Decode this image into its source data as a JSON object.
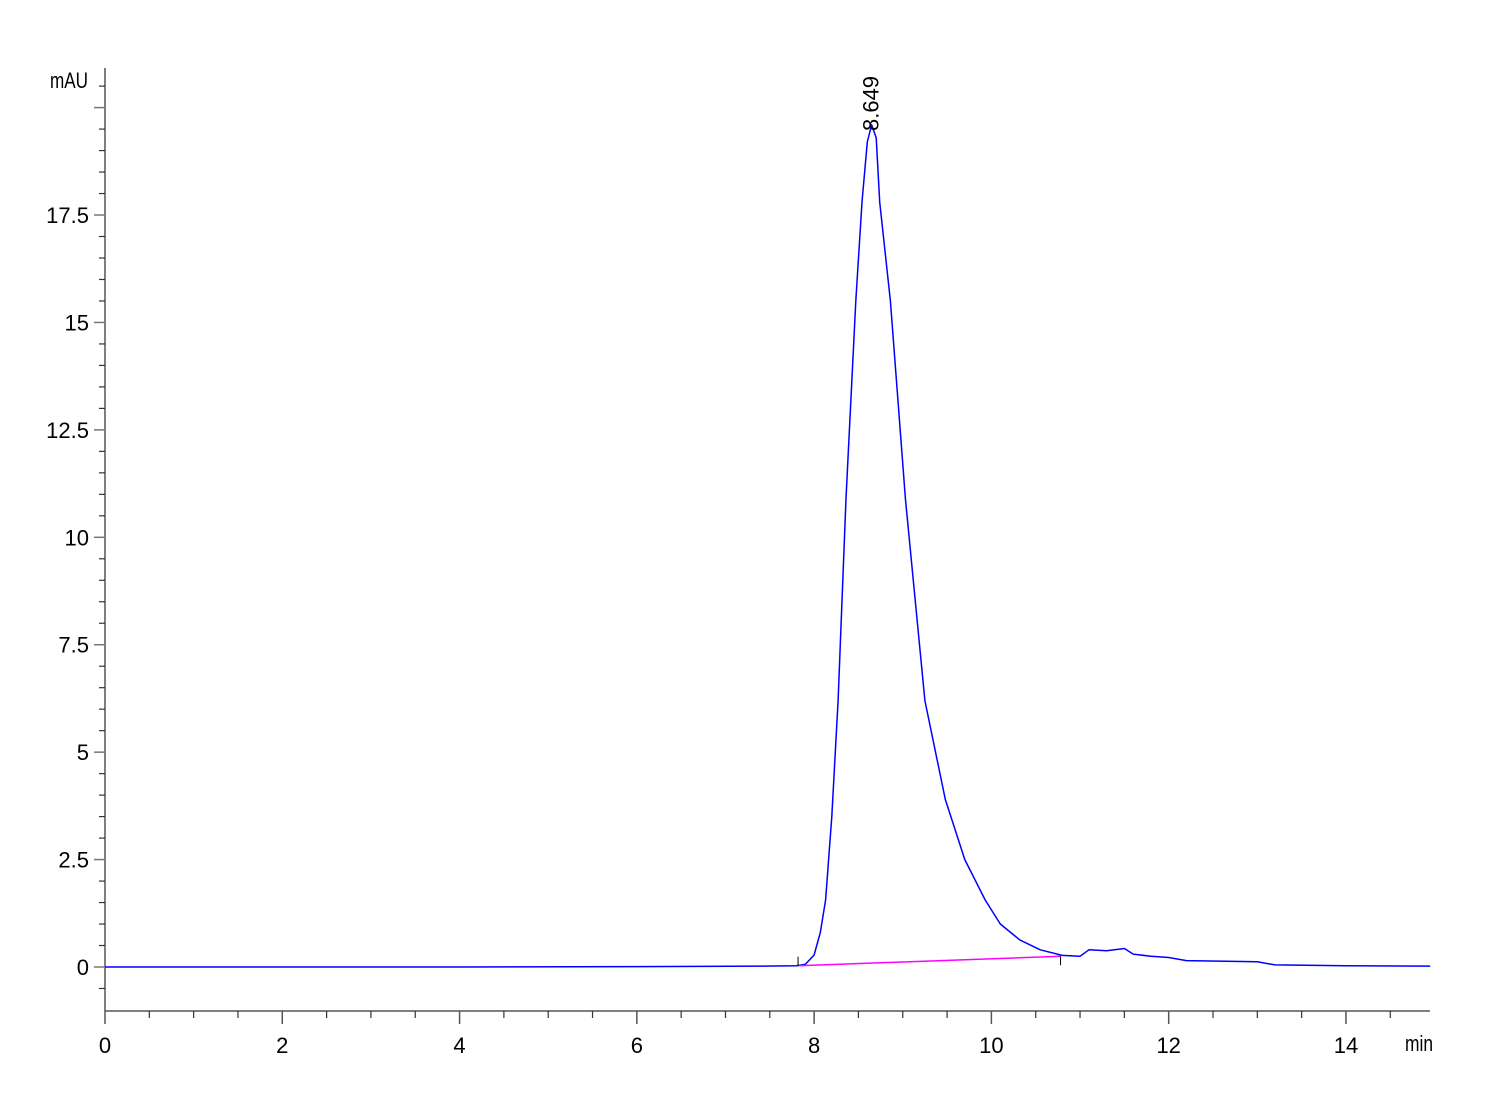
{
  "chart_data": {
    "type": "line",
    "title": "",
    "xlabel": "min",
    "ylabel": "mAU",
    "xlim": [
      0,
      14.95
    ],
    "ylim": [
      -1.0,
      20.9
    ],
    "grid": false,
    "x_ticks": [
      0,
      2,
      4,
      6,
      8,
      10,
      12,
      14
    ],
    "x_tick_labels": [
      "0",
      "2",
      "4",
      "6",
      "8",
      "10",
      "12",
      "14"
    ],
    "y_ticks": [
      0,
      2.5,
      5,
      7.5,
      10,
      12.5,
      15,
      17.5
    ],
    "y_tick_labels": [
      "0",
      "2.5",
      "5",
      "7.5",
      "10",
      "12.5",
      "15",
      "17.5"
    ],
    "series": [
      {
        "color": "#0000ff",
        "x": [
          0,
          2,
          4,
          6,
          7.4,
          7.8,
          7.9,
          8.0,
          8.07,
          8.13,
          8.2,
          8.27,
          8.36,
          8.47,
          8.54,
          8.6,
          8.649,
          8.7,
          8.74,
          8.86,
          9.03,
          9.25,
          9.48,
          9.7,
          9.93,
          10.1,
          10.32,
          10.55,
          10.8,
          11.0,
          11.1,
          11.3,
          11.5,
          11.6,
          11.8,
          12.0,
          12.2,
          13.0,
          13.2,
          14.0,
          14.95
        ],
        "y": [
          0,
          0,
          0,
          0.01,
          0.02,
          0.03,
          0.06,
          0.28,
          0.8,
          1.56,
          3.5,
          6.2,
          10.9,
          15.5,
          17.8,
          19.2,
          19.6,
          19.3,
          17.8,
          15.5,
          10.9,
          6.2,
          3.9,
          2.5,
          1.56,
          1.0,
          0.63,
          0.4,
          0.27,
          0.25,
          0.4,
          0.38,
          0.43,
          0.3,
          0.25,
          0.22,
          0.15,
          0.12,
          0.05,
          0.03,
          0.02
        ]
      }
    ],
    "integration_baseline": {
      "color": "#ff00ff",
      "x": [
        7.83,
        10.78
      ],
      "y": [
        0.03,
        0.25
      ]
    },
    "annotations": [
      {
        "text": "8.649",
        "x": 8.649,
        "y": 19.6
      }
    ]
  }
}
